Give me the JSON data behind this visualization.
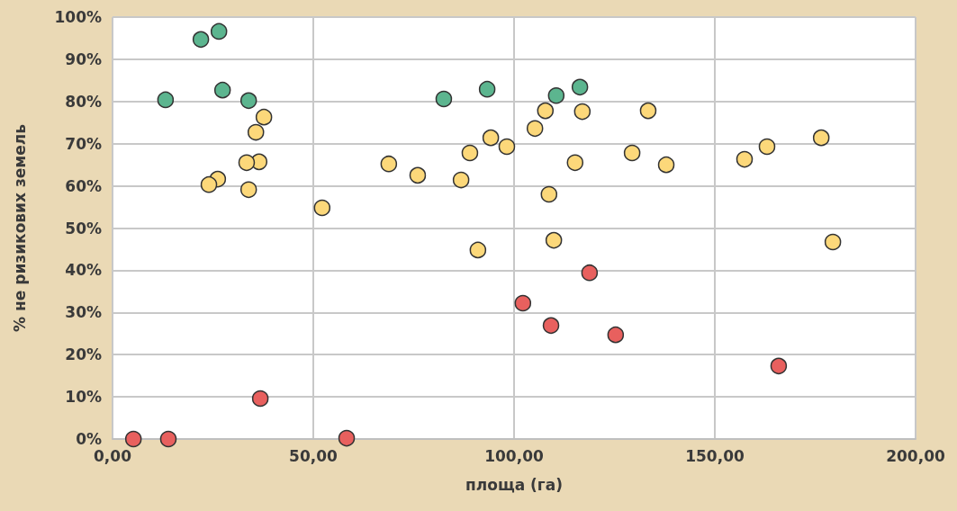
{
  "chart_data": {
    "type": "scatter",
    "xlabel": "площа (га)",
    "ylabel": "% не ризикових земель",
    "xlim": [
      0,
      200
    ],
    "xticks": [
      {
        "value": 0,
        "label": "0,00"
      },
      {
        "value": 50,
        "label": "50,00"
      },
      {
        "value": 100,
        "label": "100,00"
      },
      {
        "value": 150,
        "label": "150,00"
      },
      {
        "value": 200,
        "label": "200,00"
      }
    ],
    "ylim": [
      0,
      100
    ],
    "yticks": [
      {
        "value": 0,
        "label": "0%"
      },
      {
        "value": 10,
        "label": "10%"
      },
      {
        "value": 20,
        "label": "20%"
      },
      {
        "value": 30,
        "label": "30%"
      },
      {
        "value": 40,
        "label": "40%"
      },
      {
        "value": 50,
        "label": "50%"
      },
      {
        "value": 60,
        "label": "60%"
      },
      {
        "value": 70,
        "label": "70%"
      },
      {
        "value": 80,
        "label": "80%"
      },
      {
        "value": 90,
        "label": "90%"
      },
      {
        "value": 100,
        "label": "100%"
      }
    ],
    "grid": true,
    "marker": "circle",
    "series": [
      {
        "color": "#5cb58f",
        "x": [
          22.0,
          26.5,
          13.2,
          27.4,
          33.9,
          82.5,
          93.3,
          110.5,
          116.4
        ],
        "values": [
          94.7,
          96.6,
          80.4,
          82.7,
          80.2,
          80.6,
          82.9,
          81.4,
          83.4
        ]
      },
      {
        "color": "#fcd87a",
        "x": [
          37.7,
          35.7,
          36.5,
          33.4,
          26.2,
          24.0,
          33.9,
          52.2,
          68.8,
          76.0,
          86.8,
          89.0,
          94.2,
          98.2,
          91.0,
          105.2,
          107.8,
          117.0,
          108.7,
          109.9,
          115.2,
          129.4,
          133.4,
          137.9,
          157.4,
          163.0,
          176.5,
          179.4
        ],
        "values": [
          76.3,
          72.7,
          65.7,
          65.5,
          61.6,
          60.3,
          59.1,
          54.8,
          65.2,
          62.5,
          61.4,
          67.8,
          71.4,
          69.3,
          44.8,
          73.6,
          77.8,
          77.6,
          58.0,
          47.1,
          65.5,
          67.8,
          77.8,
          65.0,
          66.3,
          69.3,
          71.4,
          46.7
        ]
      },
      {
        "color": "#e8605e",
        "x": [
          5.2,
          13.9,
          36.8,
          58.3,
          102.2,
          109.2,
          118.8,
          125.3,
          165.9
        ],
        "values": [
          0,
          0,
          9.6,
          0.2,
          32.2,
          26.9,
          39.4,
          24.7,
          17.3
        ]
      }
    ]
  }
}
